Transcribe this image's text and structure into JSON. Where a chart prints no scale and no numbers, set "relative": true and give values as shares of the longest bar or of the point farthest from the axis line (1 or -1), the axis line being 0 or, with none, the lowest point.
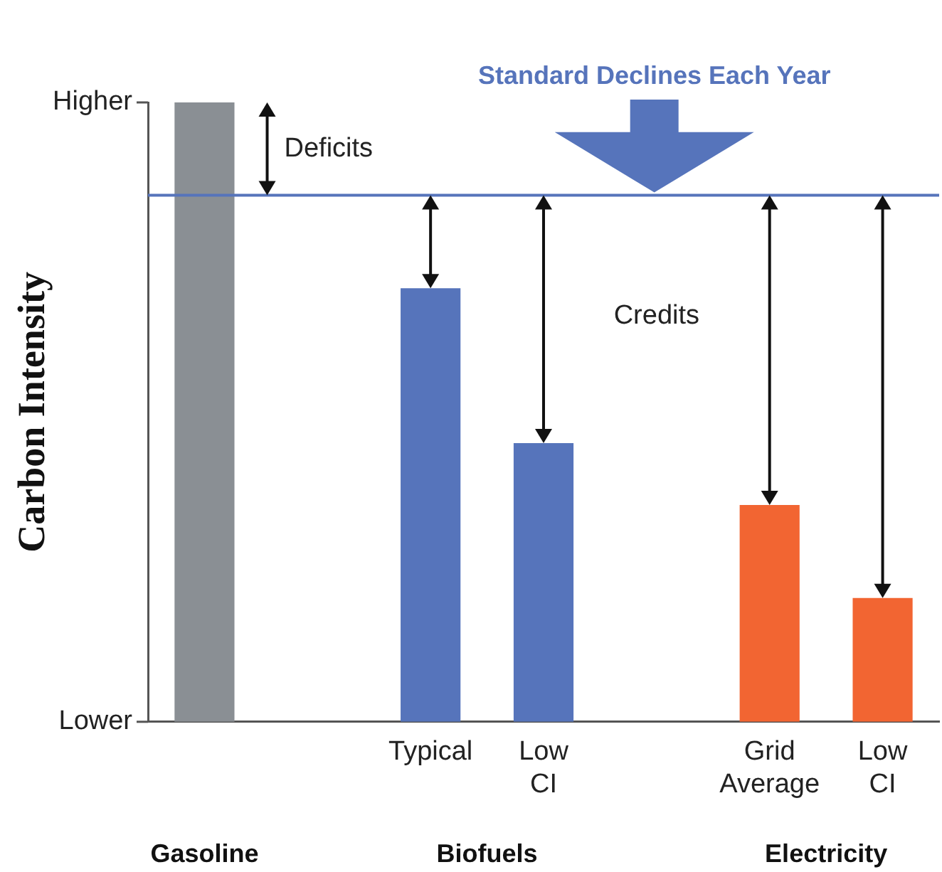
{
  "chart_data": {
    "type": "bar",
    "ylabel": "Carbon Intensity",
    "categories": [
      null,
      null,
      "Typical",
      "Low CI",
      null,
      "Grid Average",
      "Low CI"
    ],
    "values": [
      1,
      null,
      0.7,
      0.45,
      null,
      0.35,
      0.2
    ],
    "colors": [
      "#8a8f94",
      "#8a8f94",
      "#5674bb",
      "#5674bb",
      "#5674bb",
      "#f26532",
      "#f26532"
    ],
    "relative": true,
    "ref_lines": [
      {
        "axis": "y",
        "value": 0.85,
        "label": "Standard Declines Each Year",
        "color": "#5674bb"
      }
    ],
    "annotations": [
      "Deficits",
      "Credits",
      "Gasoline",
      "Biofuels",
      "Electricity",
      "Higher",
      "Lower"
    ],
    "grid": false
  }
}
